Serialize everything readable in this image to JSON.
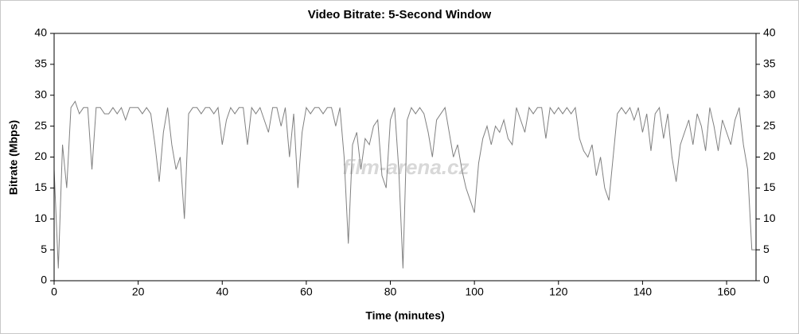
{
  "chart_data": {
    "type": "line",
    "title": "Video Bitrate: 5-Second Window",
    "x_label": "Time (minutes)",
    "y_label": "Bitrate (Mbps)",
    "watermark": "film-arena.cz",
    "xlim": [
      0,
      167
    ],
    "xticks": [
      0,
      20,
      40,
      60,
      80,
      100,
      120,
      140,
      160
    ],
    "ylim": [
      0,
      40
    ],
    "yticks": [
      0,
      5,
      10,
      15,
      20,
      25,
      30,
      35,
      40
    ],
    "y2lim": [
      0,
      40
    ],
    "y2ticks": [
      0,
      5,
      10,
      15,
      20,
      25,
      30,
      35,
      40
    ],
    "color": "#808080",
    "x": [
      0,
      1,
      2,
      3,
      4,
      5,
      6,
      7,
      8,
      9,
      10,
      11,
      12,
      13,
      14,
      15,
      16,
      17,
      18,
      19,
      20,
      21,
      22,
      23,
      24,
      25,
      26,
      27,
      28,
      29,
      30,
      31,
      32,
      33,
      34,
      35,
      36,
      37,
      38,
      39,
      40,
      41,
      42,
      43,
      44,
      45,
      46,
      47,
      48,
      49,
      50,
      51,
      52,
      53,
      54,
      55,
      56,
      57,
      58,
      59,
      60,
      61,
      62,
      63,
      64,
      65,
      66,
      67,
      68,
      69,
      70,
      71,
      72,
      73,
      74,
      75,
      76,
      77,
      78,
      79,
      80,
      81,
      82,
      83,
      84,
      85,
      86,
      87,
      88,
      89,
      90,
      91,
      92,
      93,
      94,
      95,
      96,
      97,
      98,
      99,
      100,
      101,
      102,
      103,
      104,
      105,
      106,
      107,
      108,
      109,
      110,
      111,
      112,
      113,
      114,
      115,
      116,
      117,
      118,
      119,
      120,
      121,
      122,
      123,
      124,
      125,
      126,
      127,
      128,
      129,
      130,
      131,
      132,
      133,
      134,
      135,
      136,
      137,
      138,
      139,
      140,
      141,
      142,
      143,
      144,
      145,
      146,
      147,
      148,
      149,
      150,
      151,
      152,
      153,
      154,
      155,
      156,
      157,
      158,
      159,
      160,
      161,
      162,
      163,
      164,
      165,
      166,
      167
    ],
    "values": [
      18,
      2,
      22,
      15,
      28,
      29,
      27,
      28,
      28,
      18,
      28,
      28,
      27,
      27,
      28,
      27,
      28,
      26,
      28,
      28,
      28,
      27,
      28,
      27,
      22,
      16,
      24,
      28,
      22,
      18,
      20,
      10,
      27,
      28,
      28,
      27,
      28,
      28,
      27,
      28,
      22,
      26,
      28,
      27,
      28,
      28,
      22,
      28,
      27,
      28,
      26,
      24,
      28,
      28,
      25,
      28,
      20,
      27,
      15,
      24,
      28,
      27,
      28,
      28,
      27,
      28,
      28,
      25,
      28,
      20,
      6,
      22,
      24,
      18,
      23,
      22,
      25,
      26,
      17,
      15,
      26,
      28,
      18,
      2,
      26,
      28,
      27,
      28,
      27,
      24,
      20,
      26,
      27,
      28,
      24,
      20,
      22,
      18,
      15,
      13,
      11,
      19,
      23,
      25,
      22,
      25,
      24,
      26,
      23,
      22,
      28,
      26,
      24,
      28,
      27,
      28,
      28,
      23,
      28,
      27,
      28,
      27,
      28,
      27,
      28,
      23,
      21,
      20,
      22,
      17,
      20,
      15,
      13,
      20,
      27,
      28,
      27,
      28,
      26,
      28,
      24,
      27,
      21,
      27,
      28,
      23,
      27,
      20,
      16,
      22,
      24,
      26,
      22,
      27,
      25,
      21,
      28,
      25,
      21,
      26,
      24,
      22,
      26,
      28,
      22,
      18,
      5,
      5
    ]
  }
}
